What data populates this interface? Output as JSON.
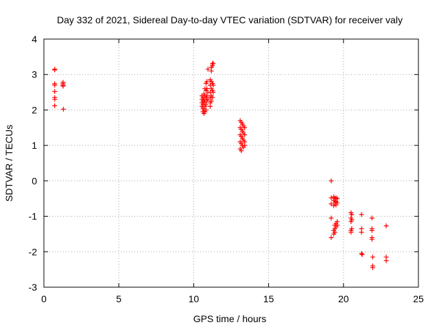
{
  "chart_data": {
    "type": "scatter",
    "title": "Day 332 of 2021, Sidereal Day-to-day VTEC variation (SDTVAR) for receiver valy",
    "xlabel": "GPS time / hours",
    "ylabel": "SDTVAR / TECUs",
    "xlim": [
      0,
      25
    ],
    "ylim": [
      -3,
      4
    ],
    "xticks": [
      0,
      5,
      10,
      15,
      20,
      25
    ],
    "yticks": [
      -3,
      -2,
      -1,
      0,
      1,
      2,
      3,
      4
    ],
    "grid": true,
    "legend": "none",
    "marker": "+",
    "color": "#ff0000",
    "series": [
      {
        "name": "SDTVAR",
        "points": [
          [
            0.72,
            3.15
          ],
          [
            0.72,
            3.13
          ],
          [
            0.72,
            2.74
          ],
          [
            0.72,
            2.7
          ],
          [
            0.72,
            2.52
          ],
          [
            0.72,
            2.35
          ],
          [
            0.72,
            2.3
          ],
          [
            0.72,
            2.12
          ],
          [
            1.28,
            2.78
          ],
          [
            1.28,
            2.74
          ],
          [
            1.28,
            2.7
          ],
          [
            1.28,
            2.67
          ],
          [
            1.3,
            2.02
          ],
          [
            10.55,
            2.4
          ],
          [
            10.55,
            2.3
          ],
          [
            10.55,
            2.2
          ],
          [
            10.55,
            2.1
          ],
          [
            10.62,
            2.35
          ],
          [
            10.62,
            2.25
          ],
          [
            10.62,
            2.15
          ],
          [
            10.62,
            2.05
          ],
          [
            10.62,
            1.95
          ],
          [
            10.68,
            2.45
          ],
          [
            10.68,
            2.3
          ],
          [
            10.68,
            2.2
          ],
          [
            10.68,
            2.0
          ],
          [
            10.68,
            1.9
          ],
          [
            10.75,
            2.6
          ],
          [
            10.75,
            2.4
          ],
          [
            10.75,
            2.25
          ],
          [
            10.75,
            2.1
          ],
          [
            10.75,
            1.95
          ],
          [
            10.82,
            2.75
          ],
          [
            10.82,
            2.55
          ],
          [
            10.82,
            2.35
          ],
          [
            10.82,
            2.15
          ],
          [
            10.82,
            2.0
          ],
          [
            10.88,
            2.8
          ],
          [
            10.88,
            2.6
          ],
          [
            10.88,
            2.4
          ],
          [
            10.88,
            2.25
          ],
          [
            10.95,
            3.15
          ],
          [
            10.95,
            2.5
          ],
          [
            10.95,
            2.3
          ],
          [
            11.1,
            2.85
          ],
          [
            11.1,
            2.7
          ],
          [
            11.1,
            2.5
          ],
          [
            11.1,
            2.35
          ],
          [
            11.1,
            2.2
          ],
          [
            11.1,
            2.1
          ],
          [
            11.18,
            3.2
          ],
          [
            11.18,
            3.1
          ],
          [
            11.18,
            2.8
          ],
          [
            11.18,
            2.6
          ],
          [
            11.18,
            2.4
          ],
          [
            11.18,
            2.25
          ],
          [
            11.25,
            3.3
          ],
          [
            11.25,
            3.25
          ],
          [
            11.25,
            2.75
          ],
          [
            11.25,
            2.55
          ],
          [
            11.25,
            2.35
          ],
          [
            11.3,
            3.32
          ],
          [
            11.3,
            2.7
          ],
          [
            11.3,
            2.5
          ],
          [
            13.1,
            1.7
          ],
          [
            13.1,
            1.5
          ],
          [
            13.1,
            1.3
          ],
          [
            13.1,
            1.1
          ],
          [
            13.1,
            0.9
          ],
          [
            13.18,
            1.65
          ],
          [
            13.18,
            1.45
          ],
          [
            13.18,
            1.25
          ],
          [
            13.18,
            1.05
          ],
          [
            13.18,
            0.85
          ],
          [
            13.25,
            1.6
          ],
          [
            13.25,
            1.4
          ],
          [
            13.25,
            1.2
          ],
          [
            13.25,
            1.0
          ],
          [
            13.32,
            1.55
          ],
          [
            13.32,
            1.35
          ],
          [
            13.32,
            1.15
          ],
          [
            13.32,
            0.95
          ],
          [
            13.4,
            1.5
          ],
          [
            13.4,
            1.3
          ],
          [
            13.4,
            1.1
          ],
          [
            13.4,
            1.0
          ],
          [
            19.18,
            0.0
          ],
          [
            19.18,
            -0.48
          ],
          [
            19.18,
            -0.65
          ],
          [
            19.18,
            -1.05
          ],
          [
            19.18,
            -1.6
          ],
          [
            19.35,
            -0.45
          ],
          [
            19.35,
            -0.55
          ],
          [
            19.35,
            -0.7
          ],
          [
            19.35,
            -1.4
          ],
          [
            19.35,
            -1.5
          ],
          [
            19.42,
            -0.5
          ],
          [
            19.42,
            -0.6
          ],
          [
            19.42,
            -1.25
          ],
          [
            19.42,
            -1.35
          ],
          [
            19.42,
            -1.45
          ],
          [
            19.5,
            -0.48
          ],
          [
            19.5,
            -0.58
          ],
          [
            19.5,
            -0.68
          ],
          [
            19.5,
            -1.2
          ],
          [
            19.5,
            -1.3
          ],
          [
            19.58,
            -0.5
          ],
          [
            19.58,
            -0.62
          ],
          [
            19.58,
            -1.15
          ],
          [
            19.58,
            -1.25
          ],
          [
            20.5,
            -0.9
          ],
          [
            20.5,
            -1.05
          ],
          [
            20.5,
            -1.15
          ],
          [
            20.5,
            -1.4
          ],
          [
            20.5,
            -1.45
          ],
          [
            20.55,
            -0.95
          ],
          [
            20.55,
            -1.1
          ],
          [
            20.55,
            -1.35
          ],
          [
            21.2,
            -0.95
          ],
          [
            21.2,
            -1.35
          ],
          [
            21.2,
            -1.45
          ],
          [
            21.2,
            -2.05
          ],
          [
            21.25,
            -2.08
          ],
          [
            21.9,
            -1.05
          ],
          [
            21.9,
            -1.35
          ],
          [
            21.9,
            -1.4
          ],
          [
            21.9,
            -1.6
          ],
          [
            21.9,
            -1.65
          ],
          [
            21.95,
            -2.15
          ],
          [
            21.95,
            -2.4
          ],
          [
            21.95,
            -2.45
          ],
          [
            22.85,
            -1.27
          ],
          [
            22.85,
            -2.15
          ],
          [
            22.85,
            -2.25
          ]
        ]
      }
    ]
  }
}
